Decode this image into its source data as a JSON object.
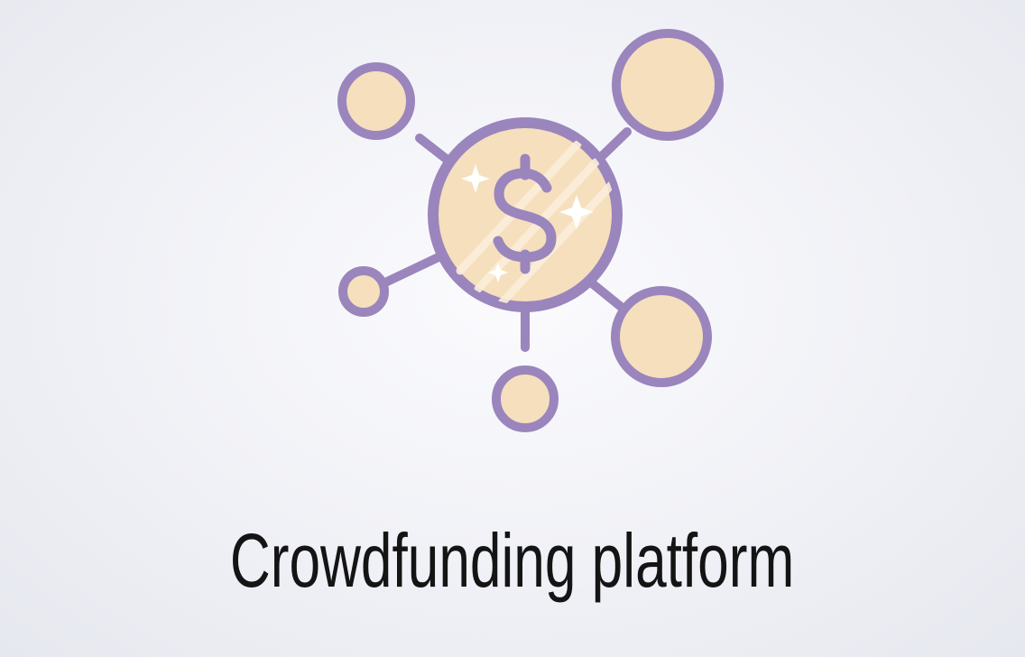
{
  "slide": {
    "caption": "Crowdfunding platform",
    "icon_name": "crowdfunding-network-icon",
    "center_symbol": "$"
  },
  "colors": {
    "stroke": "#9a85bd",
    "fill": "#f6dfbd",
    "text": "#141414",
    "sparkle": "#ffffff"
  }
}
